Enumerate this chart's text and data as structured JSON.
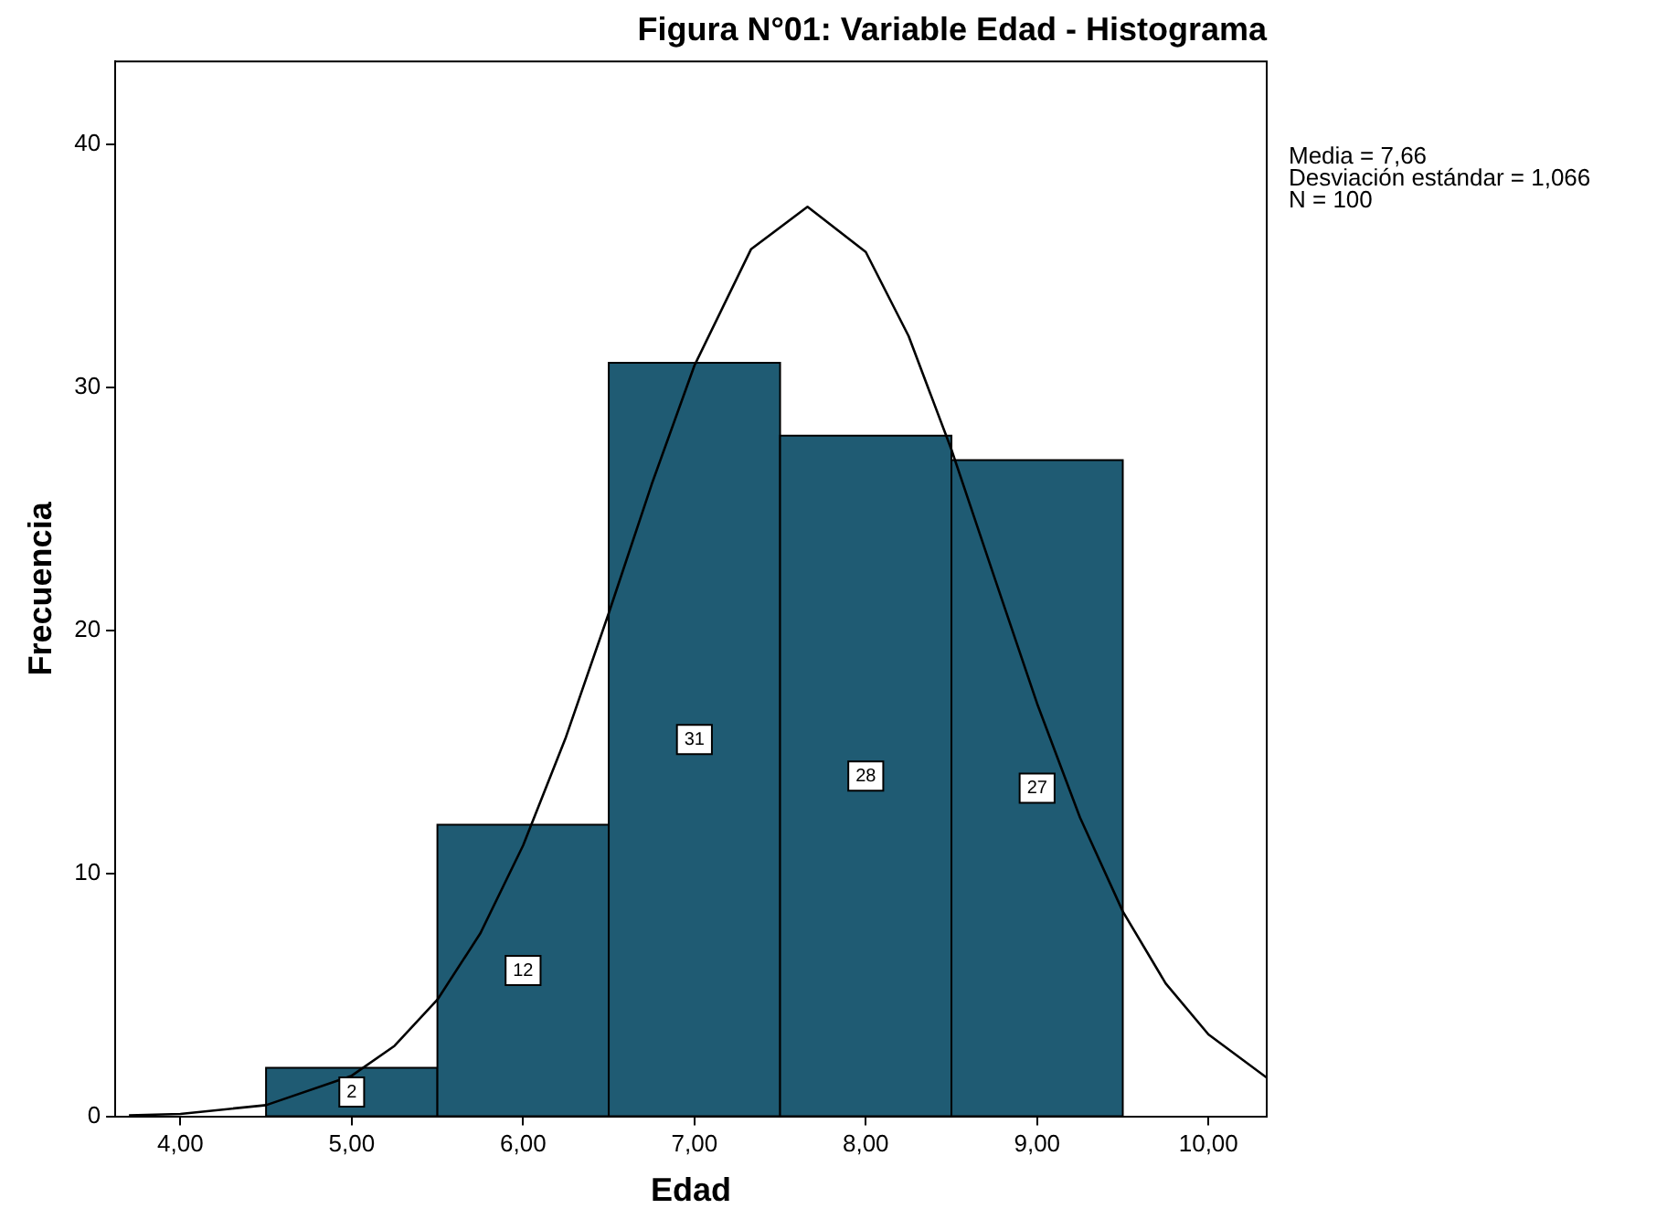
{
  "chart_data": {
    "type": "histogram",
    "title": "Figura N°01: Variable Edad - Histograma",
    "xlabel": "Edad",
    "ylabel": "Frecuencia",
    "bins": [
      4.5,
      5.5,
      6.5,
      7.5,
      8.5,
      9.5
    ],
    "values": [
      2,
      12,
      31,
      28,
      27
    ],
    "color": "#1f5b73",
    "value_labels": [
      "2",
      "12",
      "31",
      "28",
      "27"
    ],
    "series": [
      {
        "type": "line",
        "color": "#000000",
        "x": [
          3.7,
          4,
          4.5,
          5,
          5.25,
          5.5,
          5.75,
          6,
          6.25,
          6.5,
          6.75,
          7,
          7.33,
          7.66,
          8,
          8.25,
          8.5,
          8.75,
          9,
          9.25,
          9.5,
          9.75,
          10,
          10.34
        ],
        "values": [
          0.04,
          0.1,
          0.46,
          1.67,
          2.9,
          4.8,
          7.52,
          11.14,
          15.6,
          20.7,
          25.99,
          30.89,
          35.67,
          37.42,
          35.56,
          32.1,
          27.43,
          22.19,
          16.98,
          12.3,
          8.43,
          5.47,
          3.37,
          1.59
        ]
      }
    ],
    "marker": "none",
    "xlim": [
      3.62,
      10.34
    ],
    "xticks": [
      {
        "value": 4,
        "label": "4,00"
      },
      {
        "value": 5,
        "label": "5,00"
      },
      {
        "value": 6,
        "label": "6,00"
      },
      {
        "value": 7,
        "label": "7,00"
      },
      {
        "value": 8,
        "label": "8,00"
      },
      {
        "value": 9,
        "label": "9,00"
      },
      {
        "value": 10,
        "label": "10,00"
      }
    ],
    "ylim": [
      0,
      43.4
    ],
    "yticks": [
      0,
      10,
      20,
      30,
      40
    ],
    "grid": false,
    "legend": false,
    "annotations": [
      "Media = 7,66",
      "Desviación estándar = 1,066",
      "N = 100"
    ]
  }
}
